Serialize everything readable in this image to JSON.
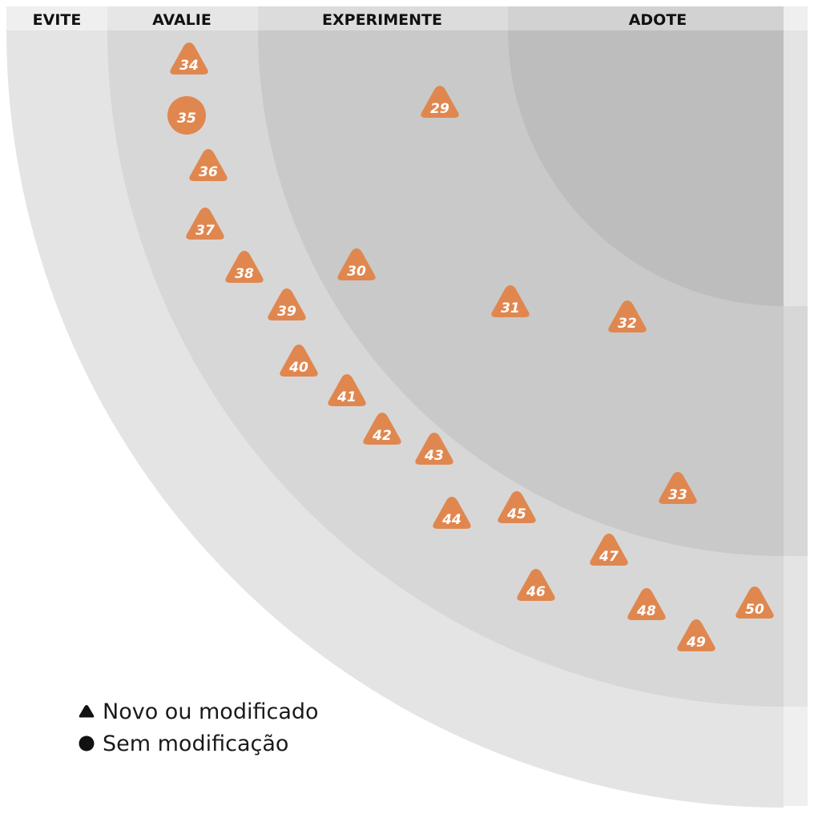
{
  "rings": [
    {
      "id": "evite",
      "label": "EVITE"
    },
    {
      "id": "avalie",
      "label": "AVALIE"
    },
    {
      "id": "experimente",
      "label": "EXPERIMENTE"
    },
    {
      "id": "adote",
      "label": "ADOTE"
    }
  ],
  "colors": {
    "blip": "#e0874f",
    "ring_adote": "#bdbdbd",
    "ring_experimente": "#c9c9c9",
    "ring_avalie": "#d7d7d7",
    "ring_evite": "#e4e4e4",
    "header": "#efefef"
  },
  "blips": [
    {
      "number": "29",
      "shape": "triangle"
    },
    {
      "number": "30",
      "shape": "triangle"
    },
    {
      "number": "31",
      "shape": "triangle"
    },
    {
      "number": "32",
      "shape": "triangle"
    },
    {
      "number": "33",
      "shape": "triangle"
    },
    {
      "number": "34",
      "shape": "triangle"
    },
    {
      "number": "35",
      "shape": "circle"
    },
    {
      "number": "36",
      "shape": "triangle"
    },
    {
      "number": "37",
      "shape": "triangle"
    },
    {
      "number": "38",
      "shape": "triangle"
    },
    {
      "number": "39",
      "shape": "triangle"
    },
    {
      "number": "40",
      "shape": "triangle"
    },
    {
      "number": "41",
      "shape": "triangle"
    },
    {
      "number": "42",
      "shape": "triangle"
    },
    {
      "number": "43",
      "shape": "triangle"
    },
    {
      "number": "44",
      "shape": "triangle"
    },
    {
      "number": "45",
      "shape": "triangle"
    },
    {
      "number": "46",
      "shape": "triangle"
    },
    {
      "number": "47",
      "shape": "triangle"
    },
    {
      "number": "48",
      "shape": "triangle"
    },
    {
      "number": "49",
      "shape": "triangle"
    },
    {
      "number": "50",
      "shape": "triangle"
    }
  ],
  "legend": {
    "new": {
      "icon": "triangle-icon",
      "label": "Novo ou modificado"
    },
    "unchanged": {
      "icon": "circle-icon",
      "label": "Sem modificação"
    }
  }
}
